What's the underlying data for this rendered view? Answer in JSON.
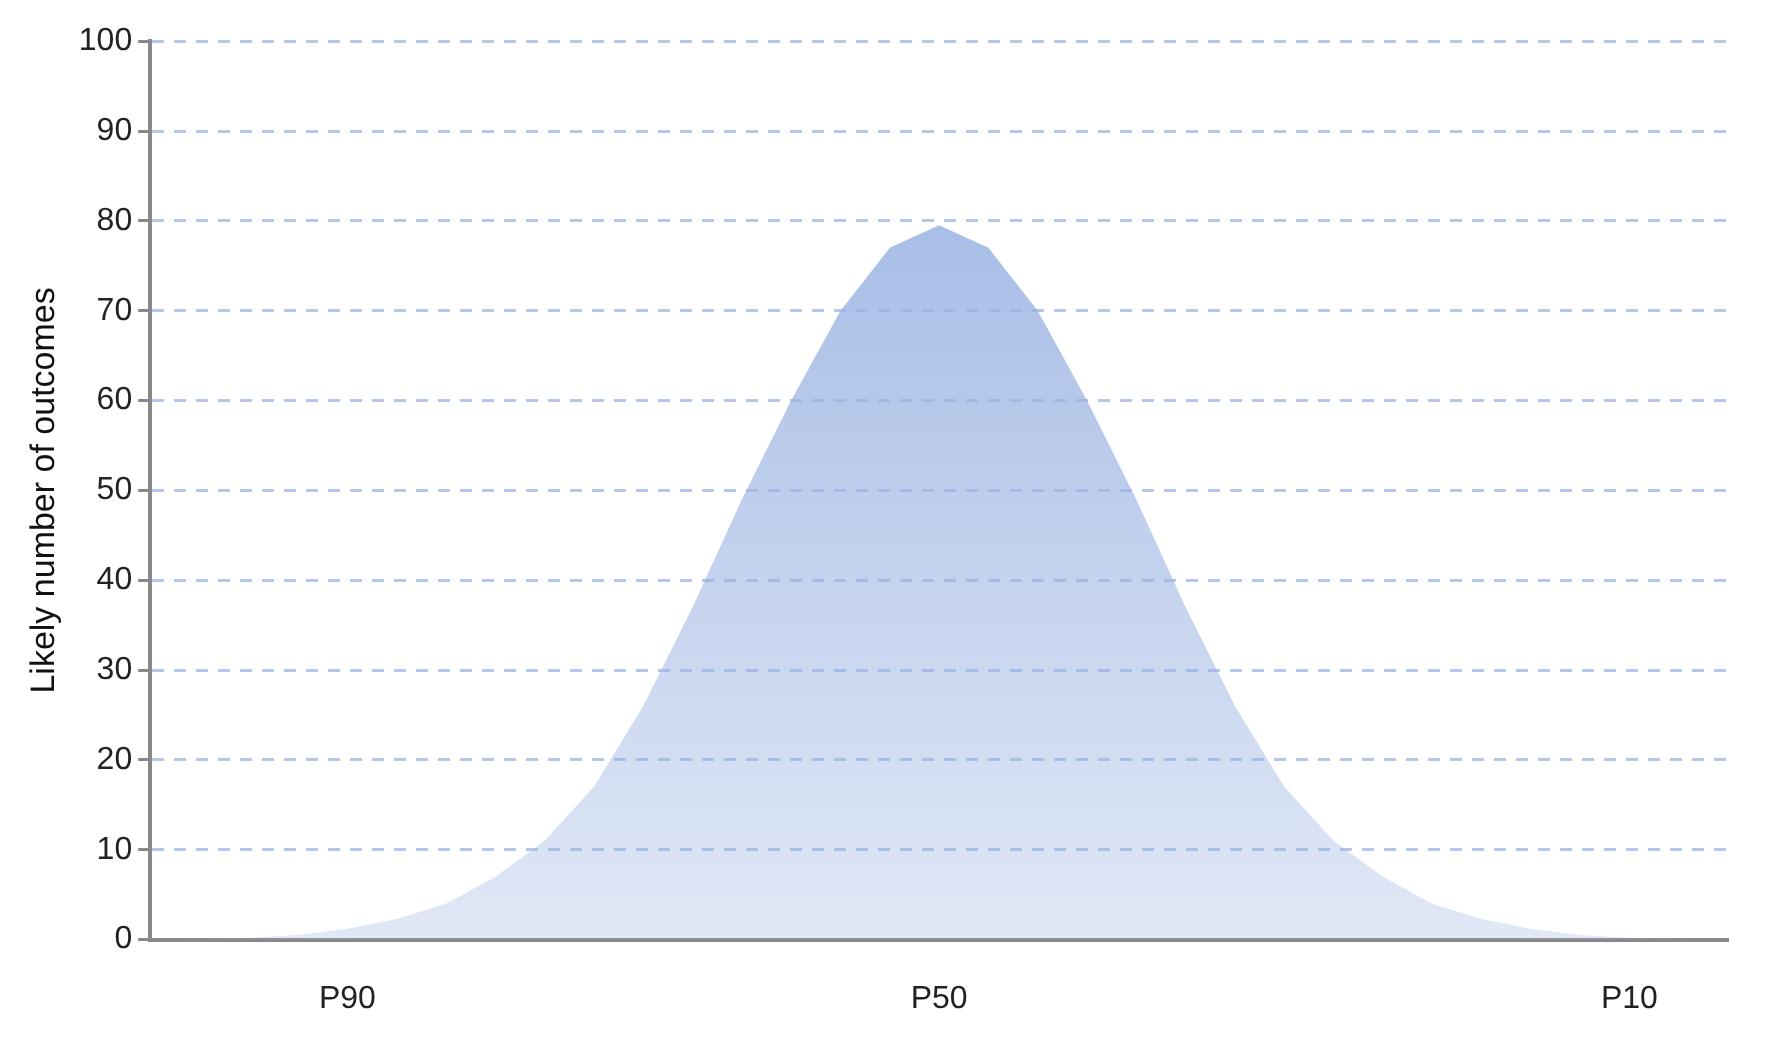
{
  "chart_data": {
    "type": "area",
    "ylabel": "Likely number of outcomes",
    "categories": [
      null,
      null,
      null,
      null,
      "P90",
      null,
      null,
      null,
      null,
      null,
      null,
      null,
      null,
      null,
      null,
      null,
      "P50",
      null,
      null,
      null,
      null,
      null,
      null,
      null,
      null,
      null,
      null,
      null,
      null,
      null,
      "P10",
      null,
      null
    ],
    "series": [
      {
        "color": "#9ab3e2",
        "values": [
          0,
          0.1,
          0.2,
          0.5,
          1.2,
          2.3,
          4,
          7,
          11,
          17,
          26,
          37,
          49,
          60,
          70,
          77,
          79.5,
          77,
          70,
          60,
          49,
          37,
          26,
          17,
          11,
          7,
          4,
          2.3,
          1.2,
          0.5,
          0.2,
          0.1,
          0
        ]
      }
    ],
    "ylim": [
      0,
      100
    ],
    "yticks": [
      0,
      10,
      20,
      30,
      40,
      50,
      60,
      70,
      80,
      90,
      100
    ],
    "grid": "y",
    "legend": false
  }
}
